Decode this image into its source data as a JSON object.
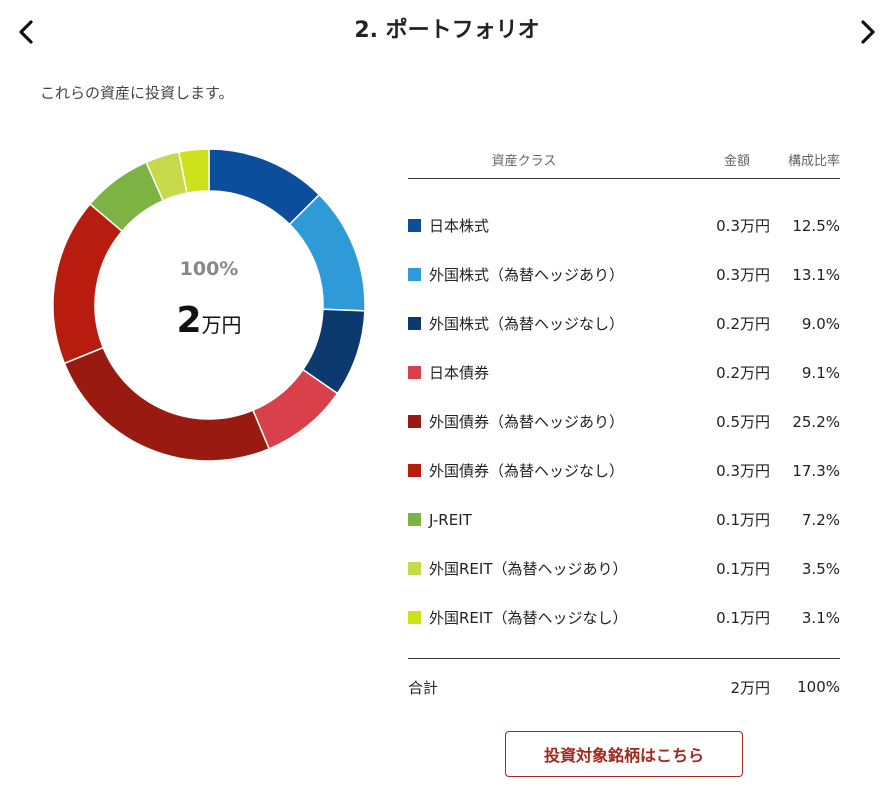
{
  "header": {
    "title": "2. ポートフォリオ"
  },
  "intro_text": "これらの資産に投資します。",
  "donut_center": {
    "percent": "100%",
    "amount_number": "2",
    "amount_unit": "万円"
  },
  "table": {
    "headers": {
      "asset_class": "資産クラス",
      "amount": "金額",
      "ratio": "構成比率"
    },
    "rows": [
      {
        "label": "日本株式",
        "amount": "0.3万円",
        "ratio": "12.5%",
        "value": 12.5,
        "color": "#0b4f9c"
      },
      {
        "label": "外国株式（為替ヘッジあり）",
        "amount": "0.3万円",
        "ratio": "13.1%",
        "value": 13.1,
        "color": "#2f9ad8"
      },
      {
        "label": "外国株式（為替ヘッジなし）",
        "amount": "0.2万円",
        "ratio": "9.0%",
        "value": 9.0,
        "color": "#0c3a6e"
      },
      {
        "label": "日本債券",
        "amount": "0.2万円",
        "ratio": "9.1%",
        "value": 9.1,
        "color": "#d8414a"
      },
      {
        "label": "外国債券（為替ヘッジあり）",
        "amount": "0.5万円",
        "ratio": "25.2%",
        "value": 25.2,
        "color": "#981a10"
      },
      {
        "label": "外国債券（為替ヘッジなし）",
        "amount": "0.3万円",
        "ratio": "17.3%",
        "value": 17.3,
        "color": "#b71c0f"
      },
      {
        "label": "J-REIT",
        "amount": "0.1万円",
        "ratio": "7.2%",
        "value": 7.2,
        "color": "#7cb342"
      },
      {
        "label": "外国REIT（為替ヘッジあり）",
        "amount": "0.1万円",
        "ratio": "3.5%",
        "value": 3.5,
        "color": "#c5d94a"
      },
      {
        "label": "外国REIT（為替ヘッジなし）",
        "amount": "0.1万円",
        "ratio": "3.1%",
        "value": 3.1,
        "color": "#cde21b"
      }
    ],
    "total": {
      "label": "合計",
      "amount": "2万円",
      "ratio": "100%"
    }
  },
  "cta_label": "投資対象銘柄はこちら",
  "icons": {
    "prev": "chevron-left-icon",
    "next": "chevron-right-icon"
  }
}
